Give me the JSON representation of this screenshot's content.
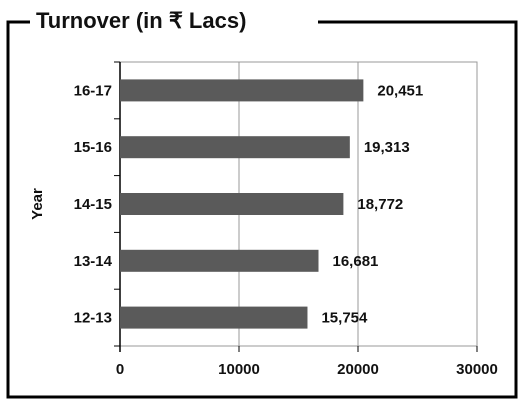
{
  "chart_data": {
    "type": "bar",
    "orientation": "horizontal",
    "title": "Turnover (in ₹ Lacs)",
    "y_label": "Year",
    "categories": [
      "16-17",
      "15-16",
      "14-15",
      "13-14",
      "12-13"
    ],
    "values": [
      20451,
      19313,
      18772,
      16681,
      15754
    ],
    "value_labels": [
      "20,451",
      "19,313",
      "18,772",
      "16,681",
      "15,754"
    ],
    "color": "#5a5a5a",
    "xlim": [
      0,
      30000
    ],
    "xticks": [
      0,
      10000,
      20000,
      30000
    ],
    "grid": true
  }
}
